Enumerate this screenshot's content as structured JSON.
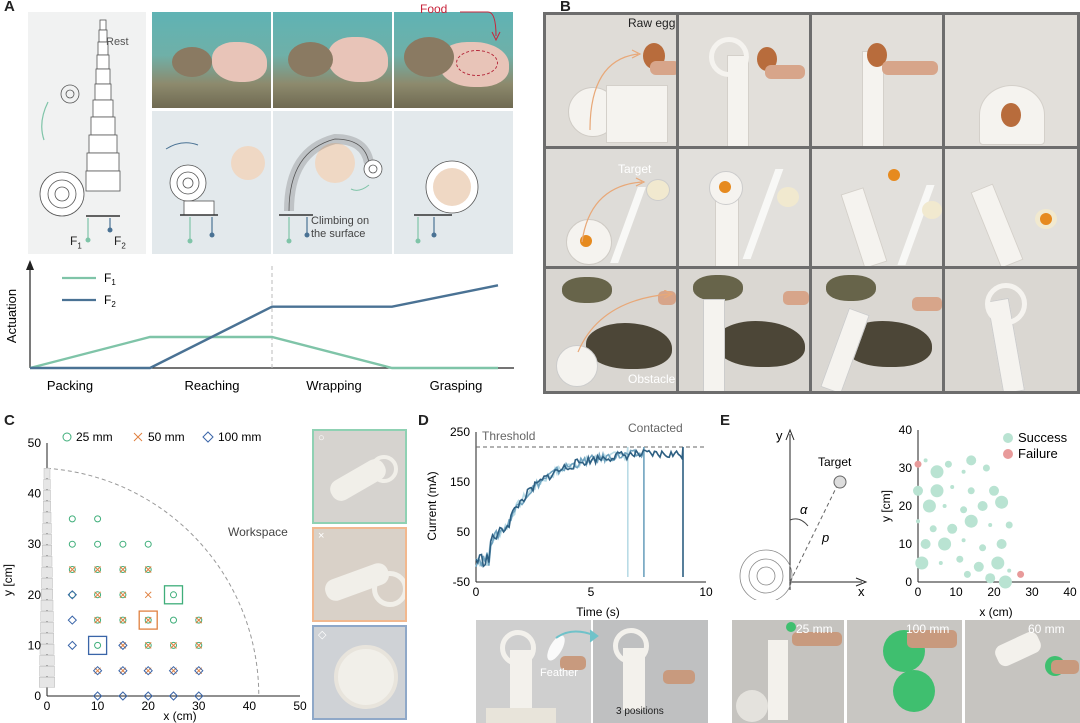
{
  "panel_labels": {
    "a": "A",
    "b": "B",
    "c": "C",
    "d": "D",
    "e": "E"
  },
  "panel_a": {
    "rest_label": "Rest",
    "food_label": "Food",
    "f1_label": "F",
    "f1_sub": "1",
    "f2_label": "F",
    "f2_sub": "2",
    "climbing_label_1": "Climbing on",
    "climbing_label_2": "the surface",
    "chart_data": {
      "type": "line",
      "ylabel": "Actuation",
      "x": [
        "Packing",
        "Reaching",
        "Wrapping",
        "Grasping"
      ],
      "series": [
        {
          "name": "F1",
          "color": "#7fc4a8",
          "points": [
            [
              0,
              0
            ],
            [
              1,
              0.45
            ],
            [
              2,
              0.45
            ],
            [
              3,
              0
            ],
            [
              4,
              0
            ]
          ]
        },
        {
          "name": "F2",
          "color": "#4a7294",
          "points": [
            [
              0,
              0
            ],
            [
              1,
              0
            ],
            [
              2,
              0.89
            ],
            [
              3,
              0.89
            ],
            [
              4,
              1.2
            ]
          ]
        }
      ],
      "legend": [
        {
          "name": "F",
          "sub": "1"
        },
        {
          "name": "F",
          "sub": "2"
        }
      ]
    }
  },
  "panel_b": {
    "raw_egg_label": "Raw egg",
    "target_label": "Target",
    "obstacle_label": "Obstacle"
  },
  "panel_c": {
    "chart_data": {
      "type": "scatter",
      "xlabel": "x (cm)",
      "ylabel": "y [cm]",
      "xlim": [
        0,
        50
      ],
      "ylim": [
        0,
        50
      ],
      "xticks": [
        "0",
        "10",
        "20",
        "30",
        "40",
        "50"
      ],
      "yticks": [
        "0",
        "10",
        "20",
        "30",
        "40",
        "50"
      ],
      "legend": [
        "25 mm",
        "50 mm",
        "100 mm"
      ],
      "workspace_label": "Workspace",
      "workspace_radius": 45,
      "series": [
        {
          "name": "25 mm",
          "marker": "circle",
          "color": "#3fae7a",
          "points": [
            [
              5,
              35
            ],
            [
              10,
              35
            ],
            [
              5,
              30
            ],
            [
              10,
              30
            ],
            [
              15,
              30
            ],
            [
              20,
              30
            ],
            [
              5,
              25
            ],
            [
              10,
              25
            ],
            [
              15,
              25
            ],
            [
              20,
              25
            ],
            [
              5,
              20
            ],
            [
              10,
              20
            ],
            [
              15,
              20
            ],
            [
              25,
              20
            ],
            [
              10,
              15
            ],
            [
              15,
              15
            ],
            [
              20,
              15
            ],
            [
              25,
              15
            ],
            [
              10,
              10
            ],
            [
              20,
              10
            ],
            [
              25,
              10
            ],
            [
              30,
              10
            ],
            [
              30,
              15
            ]
          ]
        },
        {
          "name": "50 mm",
          "marker": "x",
          "color": "#e08040",
          "points": [
            [
              5,
              25
            ],
            [
              10,
              25
            ],
            [
              15,
              25
            ],
            [
              20,
              25
            ],
            [
              10,
              20
            ],
            [
              15,
              20
            ],
            [
              20,
              20
            ],
            [
              10,
              15
            ],
            [
              15,
              15
            ],
            [
              20,
              15
            ],
            [
              15,
              10
            ],
            [
              20,
              10
            ],
            [
              25,
              10
            ],
            [
              30,
              10
            ],
            [
              10,
              5
            ],
            [
              15,
              5
            ],
            [
              20,
              5
            ],
            [
              25,
              5
            ],
            [
              30,
              5
            ],
            [
              30,
              15
            ]
          ]
        },
        {
          "name": "100 mm",
          "marker": "diamond",
          "color": "#3a65a8",
          "points": [
            [
              5,
              20
            ],
            [
              5,
              15
            ],
            [
              5,
              10
            ],
            [
              15,
              10
            ],
            [
              10,
              5
            ],
            [
              15,
              5
            ],
            [
              10,
              0
            ],
            [
              15,
              0
            ],
            [
              20,
              0
            ],
            [
              25,
              0
            ],
            [
              30,
              0
            ],
            [
              20,
              5
            ],
            [
              25,
              5
            ],
            [
              30,
              5
            ]
          ]
        }
      ],
      "highlight": [
        {
          "x": 25,
          "y": 20,
          "color": "#3fae7a"
        },
        {
          "x": 20,
          "y": 15,
          "color": "#e08040"
        },
        {
          "x": 10,
          "y": 10,
          "color": "#3a65a8"
        }
      ],
      "inset_icons": [
        "○",
        "×",
        "◇"
      ]
    }
  },
  "panel_d": {
    "chart_data": {
      "type": "line",
      "xlabel": "Time (s)",
      "ylabel": "Current (mA)",
      "xlim": [
        0,
        10
      ],
      "ylim": [
        -50,
        250
      ],
      "xticks": [
        "0",
        "5",
        "10"
      ],
      "yticks": [
        "-50",
        "50",
        "150",
        "250"
      ],
      "threshold_label": "Threshold",
      "threshold_value": 220,
      "contacted_label": "Contacted",
      "series": [
        {
          "name": "trial 1",
          "color": "#b9dbe6",
          "end": 6.6
        },
        {
          "name": "trial 2",
          "color": "#6fa3bf",
          "end": 7.3
        },
        {
          "name": "trial 3",
          "color": "#2d5f82",
          "end": 9.0
        }
      ]
    },
    "feather_label": "Feather",
    "positions_label": "3 positions"
  },
  "panel_e": {
    "schematic": {
      "x_label": "x",
      "y_label": "y",
      "alpha_label": "α",
      "p_label": "p",
      "target_label": "Target"
    },
    "chart_data": {
      "type": "scatter",
      "xlabel": "x (cm)",
      "ylabel": "y [cm]",
      "xlim": [
        0,
        40
      ],
      "ylim": [
        0,
        40
      ],
      "xticks": [
        "0",
        "10",
        "20",
        "30",
        "40"
      ],
      "yticks": [
        "0",
        "10",
        "20",
        "30",
        "40"
      ],
      "legend": [
        "Success",
        "Failure"
      ],
      "success_color": "#b9e3d2",
      "failure_color": "#e89a9a",
      "success_points": [
        [
          2,
          32
        ],
        [
          8,
          31
        ],
        [
          14,
          32
        ],
        [
          5,
          29
        ],
        [
          12,
          29
        ],
        [
          18,
          30
        ],
        [
          0,
          24
        ],
        [
          5,
          24
        ],
        [
          9,
          25
        ],
        [
          14,
          24
        ],
        [
          20,
          24
        ],
        [
          3,
          20
        ],
        [
          7,
          20
        ],
        [
          12,
          19
        ],
        [
          17,
          20
        ],
        [
          22,
          21
        ],
        [
          0,
          16
        ],
        [
          4,
          14
        ],
        [
          9,
          14
        ],
        [
          14,
          16
        ],
        [
          19,
          15
        ],
        [
          24,
          15
        ],
        [
          2,
          10
        ],
        [
          7,
          10
        ],
        [
          12,
          11
        ],
        [
          17,
          9
        ],
        [
          22,
          10
        ],
        [
          1,
          5
        ],
        [
          6,
          5
        ],
        [
          11,
          6
        ],
        [
          16,
          4
        ],
        [
          21,
          5
        ],
        [
          24,
          3
        ],
        [
          13,
          2
        ],
        [
          19,
          1
        ],
        [
          23,
          0
        ]
      ],
      "failure_points": [
        [
          0,
          31
        ],
        [
          27,
          2
        ]
      ]
    },
    "photo_labels": [
      "25 mm",
      "100 mm",
      "60 mm"
    ]
  }
}
